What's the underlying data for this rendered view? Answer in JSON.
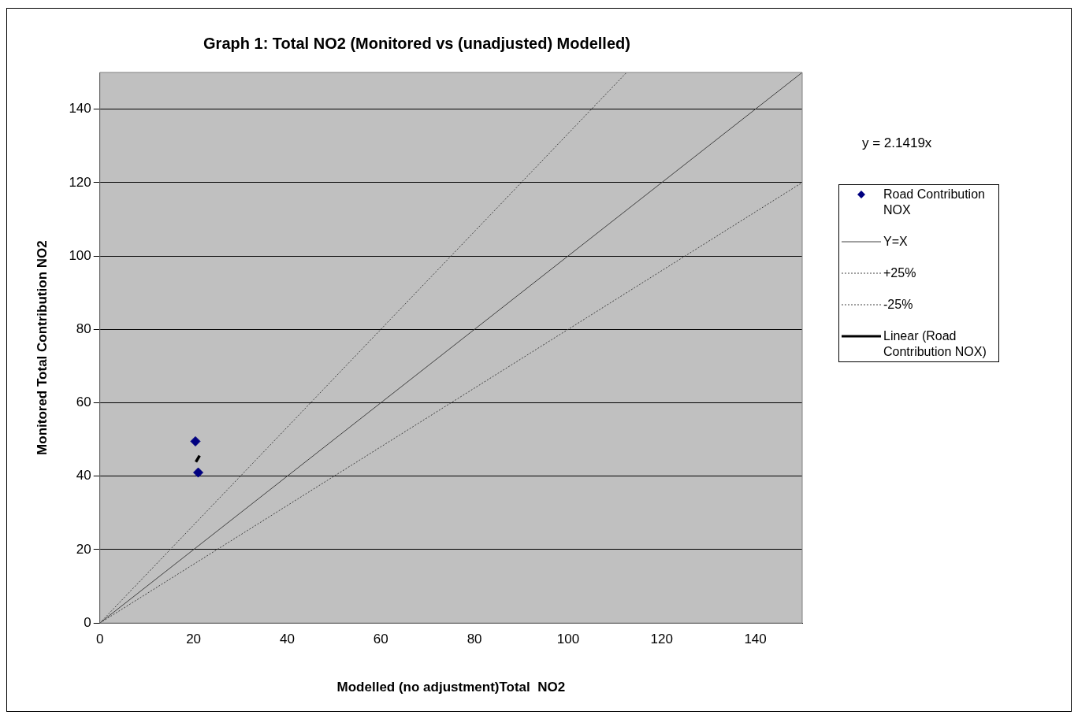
{
  "chart_data": {
    "type": "scatter",
    "title": "Graph 1: Total NO2 (Monitored vs (unadjusted) Modelled)",
    "xlabel": "Modelled (no adjustment)Total  NO2",
    "ylabel": "Monitored Total Contribution NO2",
    "xlim": [
      0,
      150
    ],
    "ylim": [
      0,
      150
    ],
    "xticks": [
      0,
      20,
      40,
      60,
      80,
      100,
      120,
      140
    ],
    "yticks": [
      0,
      20,
      40,
      60,
      80,
      100,
      120,
      140
    ],
    "grid": "y",
    "legend": "right",
    "annotations": [
      "y = 2.1419x"
    ],
    "series": [
      {
        "name": "Road Contribution NOX",
        "marker": "diamond",
        "color": "#000080",
        "x": [
          20.4,
          21.0
        ],
        "values": [
          49.5,
          41.0
        ]
      },
      {
        "name": "Y=X",
        "type": "line",
        "marker": "none",
        "color": "#404040",
        "line_style": "solid",
        "x": [
          0,
          150
        ],
        "values": [
          0,
          150
        ]
      },
      {
        "name": "+25%",
        "type": "line",
        "marker": "none",
        "color": "#404040",
        "line_style": "dotted",
        "x": [
          0,
          112.5
        ],
        "values": [
          0,
          150
        ]
      },
      {
        "name": "-25%",
        "type": "line",
        "marker": "none",
        "color": "#404040",
        "line_style": "dotted",
        "x": [
          0,
          150
        ],
        "values": [
          0,
          120
        ]
      },
      {
        "name": "Linear (Road Contribution NOX)",
        "type": "line",
        "marker": "none",
        "color": "#000000",
        "line_style": "solid",
        "x": [
          20.5,
          21.3
        ],
        "values": [
          43.9,
          45.6
        ]
      }
    ]
  }
}
